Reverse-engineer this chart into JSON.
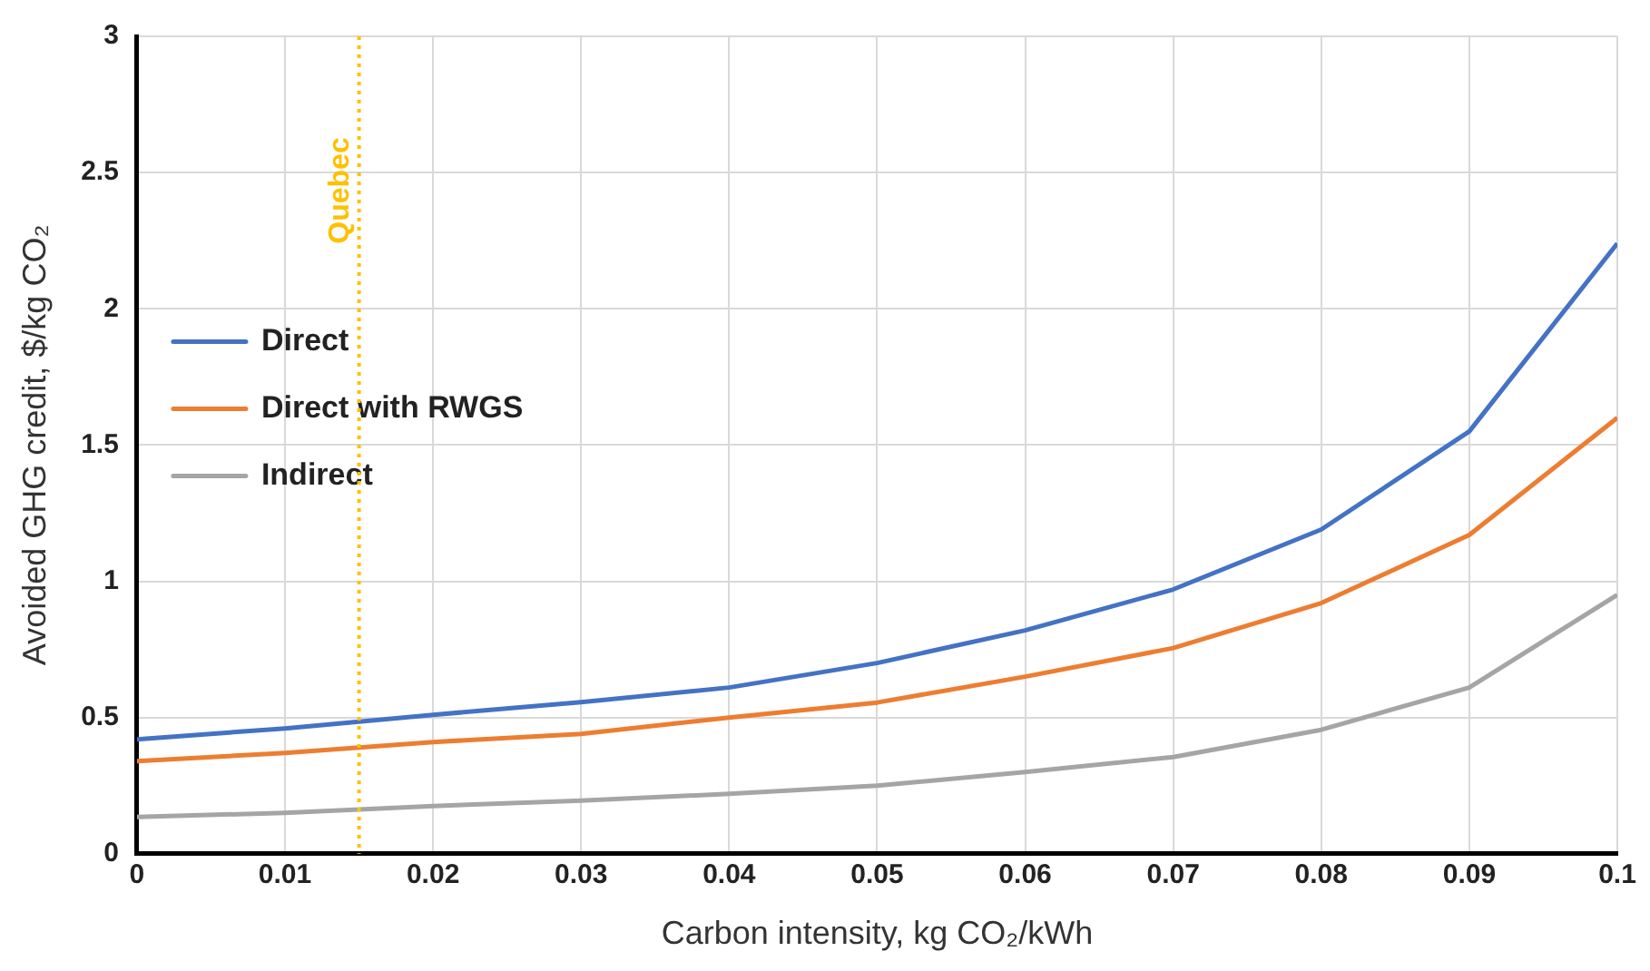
{
  "chart_data": {
    "type": "line",
    "xlabel": "Carbon intensity, kg CO₂/kWh",
    "ylabel": "Avoided GHG credit, $/kg CO₂",
    "x": [
      0,
      0.01,
      0.02,
      0.03,
      0.04,
      0.05,
      0.06,
      0.07,
      0.08,
      0.09,
      0.1
    ],
    "series": [
      {
        "name": "Direct",
        "color": "#4472c4",
        "values": [
          0.42,
          0.46,
          0.51,
          0.556,
          0.61,
          0.7,
          0.82,
          0.97,
          1.19,
          1.55,
          2.24
        ]
      },
      {
        "name": "Direct with RWGS",
        "color": "#ed7d31",
        "values": [
          0.34,
          0.37,
          0.41,
          0.44,
          0.5,
          0.555,
          0.65,
          0.755,
          0.92,
          1.17,
          1.6
        ]
      },
      {
        "name": "Indirect",
        "color": "#a5a5a5",
        "values": [
          0.135,
          0.15,
          0.175,
          0.195,
          0.22,
          0.25,
          0.3,
          0.355,
          0.455,
          0.61,
          0.95
        ]
      }
    ],
    "xlim": [
      0,
      0.1
    ],
    "xticks": [
      0,
      0.01,
      0.02,
      0.03,
      0.04,
      0.05,
      0.06,
      0.07,
      0.08,
      0.09,
      0.1
    ],
    "ylim": [
      0,
      3
    ],
    "yticks": [
      0,
      0.5,
      1,
      1.5,
      2,
      2.5,
      3
    ],
    "ref_lines": [
      {
        "axis": "x",
        "value": 0.015,
        "label": "Quebec",
        "color": "#ffc000",
        "line_style": "dotted"
      }
    ],
    "grid": true,
    "legend": "top",
    "marker": "none",
    "line_style": "solid"
  }
}
